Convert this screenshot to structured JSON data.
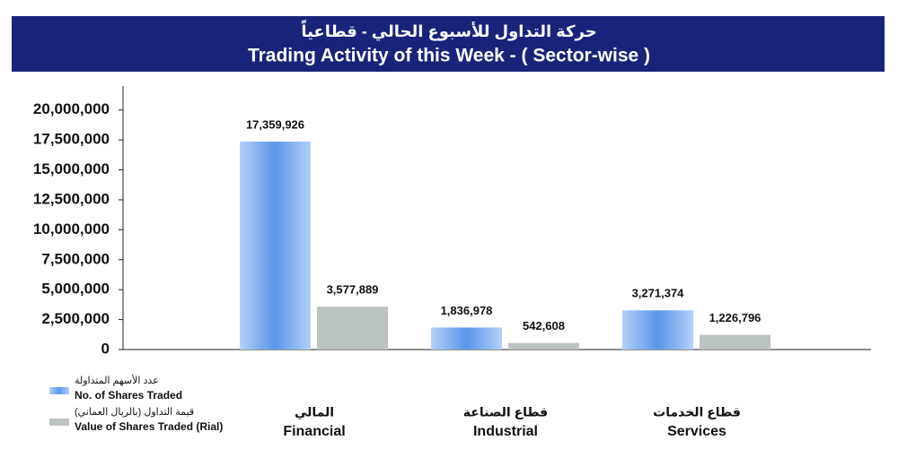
{
  "chart_data": {
    "type": "bar",
    "title_ar": "حركة التداول للأسبوع الحالي - قطاعياً",
    "title": "Trading Activity of this Week - ( Sector-wise )",
    "categories": [
      "Financial",
      "Industrial",
      "Services"
    ],
    "categories_ar": [
      "المالي",
      "قطاع الصناعة",
      "قطاع الخدمات"
    ],
    "series": [
      {
        "name": "No. of Shares Traded",
        "name_ar": "عدد الأسهم المتداولة",
        "color": "#5b95ea",
        "values": [
          17359926,
          1836978,
          3271374
        ],
        "value_labels": [
          "17,359,926",
          "1,836,978",
          "3,271,374"
        ]
      },
      {
        "name": "Value of Shares Traded (Rial)",
        "name_ar": "قيمة التداول (بالريال العماني)",
        "color": "#bcc3c3",
        "values": [
          3577889,
          542608,
          1226796
        ],
        "value_labels": [
          "3,577,889",
          "542,608",
          "1,226,796"
        ]
      }
    ],
    "ylim": [
      0,
      22000000
    ],
    "yticks": [
      {
        "value": 0,
        "label": "0"
      },
      {
        "value": 2500000,
        "label": "2,500,000"
      },
      {
        "value": 5000000,
        "label": "5,000,000"
      },
      {
        "value": 7500000,
        "label": "7,500,000"
      },
      {
        "value": 10000000,
        "label": "10,000,000"
      },
      {
        "value": 12500000,
        "label": "12,500,000"
      },
      {
        "value": 15000000,
        "label": "15,000,000"
      },
      {
        "value": 17500000,
        "label": "17,500,000"
      },
      {
        "value": 20000000,
        "label": "20,000,000"
      }
    ]
  }
}
